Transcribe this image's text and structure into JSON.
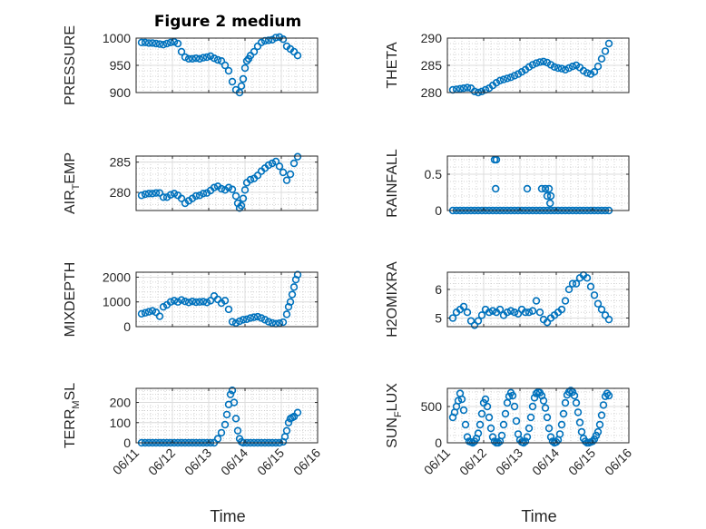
{
  "figure_title": "Figure 2 medium",
  "colors": {
    "marker": "#0072bd",
    "axis": "#262626",
    "grid": "#dcdcdc"
  },
  "chart_data": [
    {
      "type": "scatter",
      "ylabel": "PRESSURE",
      "xlim": [
        0,
        5
      ],
      "ylim": [
        900,
        1000
      ],
      "yticks": [
        900,
        950,
        1000
      ],
      "xticks": [
        0,
        1,
        2,
        3,
        4,
        5
      ],
      "xticklabels": [
        "06/11",
        "06/12",
        "06/13",
        "06/14",
        "06/15",
        "06/16"
      ],
      "show_xticklabels": false,
      "grid": true,
      "minor_grid": true,
      "marker": "o",
      "x": [
        0.15,
        0.25,
        0.35,
        0.45,
        0.55,
        0.65,
        0.75,
        0.85,
        0.95,
        1.05,
        1.15,
        1.25,
        1.35,
        1.45,
        1.55,
        1.65,
        1.75,
        1.85,
        1.95,
        2.05,
        2.15,
        2.25,
        2.35,
        2.45,
        2.55,
        2.65,
        2.75,
        2.85,
        2.9,
        2.95,
        3.0,
        3.05,
        3.1,
        3.15,
        3.25,
        3.35,
        3.45,
        3.55,
        3.65,
        3.75,
        3.85,
        3.95,
        4.05,
        4.15,
        4.25,
        4.35,
        4.45
      ],
      "y": [
        992,
        992,
        991,
        991,
        990,
        989,
        988,
        990,
        992,
        993,
        990,
        975,
        965,
        962,
        962,
        963,
        962,
        964,
        965,
        967,
        963,
        960,
        958,
        950,
        940,
        920,
        905,
        900,
        912,
        925,
        945,
        958,
        962,
        968,
        975,
        985,
        992,
        995,
        996,
        997,
        1001,
        1002,
        998,
        985,
        980,
        975,
        968
      ]
    },
    {
      "type": "scatter",
      "ylabel": "THETA",
      "xlim": [
        0,
        5
      ],
      "ylim": [
        280,
        290
      ],
      "yticks": [
        280,
        285,
        290
      ],
      "xticks": [
        0,
        1,
        2,
        3,
        4,
        5
      ],
      "xticklabels": [
        "06/11",
        "06/12",
        "06/13",
        "06/14",
        "06/15",
        "06/16"
      ],
      "show_xticklabels": false,
      "grid": true,
      "minor_grid": true,
      "marker": "o",
      "x": [
        0.15,
        0.25,
        0.35,
        0.45,
        0.55,
        0.65,
        0.75,
        0.85,
        0.95,
        1.05,
        1.15,
        1.25,
        1.35,
        1.45,
        1.55,
        1.65,
        1.75,
        1.85,
        1.95,
        2.05,
        2.15,
        2.25,
        2.35,
        2.45,
        2.55,
        2.65,
        2.75,
        2.85,
        2.95,
        3.05,
        3.15,
        3.25,
        3.35,
        3.45,
        3.55,
        3.65,
        3.75,
        3.85,
        3.95,
        4.05,
        4.15,
        4.25,
        4.35,
        4.45
      ],
      "y": [
        280.5,
        280.6,
        280.7,
        280.8,
        280.9,
        280.8,
        280.2,
        280.0,
        280.2,
        280.5,
        280.8,
        281.3,
        281.8,
        282.2,
        282.4,
        282.6,
        282.8,
        283.1,
        283.4,
        283.8,
        284.2,
        284.7,
        285.1,
        285.4,
        285.6,
        285.7,
        285.5,
        285.1,
        284.7,
        284.5,
        284.4,
        284.2,
        284.5,
        284.8,
        285.0,
        284.6,
        284.0,
        283.6,
        283.4,
        283.8,
        284.8,
        286.2,
        287.6,
        289.0
      ]
    },
    {
      "type": "scatter",
      "ylabel": "AIR_TEMP",
      "xlim": [
        0,
        5
      ],
      "ylim": [
        277,
        286
      ],
      "yticks": [
        280,
        285
      ],
      "xticks": [
        0,
        1,
        2,
        3,
        4,
        5
      ],
      "xticklabels": [
        "06/11",
        "06/12",
        "06/13",
        "06/14",
        "06/15",
        "06/16"
      ],
      "show_xticklabels": false,
      "grid": true,
      "minor_grid": true,
      "marker": "o",
      "x": [
        0.15,
        0.25,
        0.35,
        0.45,
        0.55,
        0.65,
        0.75,
        0.85,
        0.95,
        1.05,
        1.15,
        1.25,
        1.35,
        1.45,
        1.55,
        1.65,
        1.75,
        1.85,
        1.95,
        2.05,
        2.15,
        2.25,
        2.35,
        2.45,
        2.55,
        2.65,
        2.75,
        2.8,
        2.85,
        2.9,
        2.95,
        3.0,
        3.05,
        3.15,
        3.25,
        3.35,
        3.45,
        3.55,
        3.65,
        3.75,
        3.85,
        3.95,
        4.05,
        4.15,
        4.25,
        4.35,
        4.45
      ],
      "y": [
        279.5,
        279.7,
        279.8,
        279.8,
        279.9,
        279.9,
        279.2,
        279.2,
        279.6,
        279.8,
        279.5,
        279.0,
        278.2,
        278.6,
        279.0,
        279.4,
        279.5,
        279.8,
        279.9,
        280.3,
        280.8,
        281.0,
        280.6,
        280.4,
        280.8,
        280.5,
        279.4,
        278.2,
        277.4,
        277.8,
        279.0,
        280.4,
        281.6,
        282.1,
        282.3,
        282.8,
        283.5,
        284.0,
        284.5,
        284.8,
        285.1,
        284.3,
        283.3,
        282.0,
        283.0,
        284.8,
        285.9
      ]
    },
    {
      "type": "scatter",
      "ylabel": "RAINFALL",
      "xlim": [
        0,
        5
      ],
      "ylim": [
        0,
        0.75
      ],
      "yticks": [
        0,
        0.5
      ],
      "xticks": [
        0,
        1,
        2,
        3,
        4,
        5
      ],
      "xticklabels": [
        "06/11",
        "06/12",
        "06/13",
        "06/14",
        "06/15",
        "06/16"
      ],
      "show_xticklabels": false,
      "grid": true,
      "minor_grid": true,
      "marker": "o",
      "x": [
        0.15,
        0.25,
        0.35,
        0.45,
        0.55,
        0.65,
        0.75,
        0.85,
        0.95,
        1.05,
        1.15,
        1.25,
        1.35,
        1.45,
        1.55,
        1.65,
        1.75,
        1.85,
        1.95,
        2.05,
        2.15,
        2.25,
        2.35,
        2.45,
        2.55,
        2.65,
        2.75,
        2.85,
        2.95,
        3.05,
        3.15,
        3.25,
        3.35,
        3.45,
        3.55,
        3.65,
        3.75,
        3.85,
        3.95,
        4.05,
        4.15,
        4.25,
        4.35,
        4.45,
        1.3,
        1.35,
        1.33,
        2.2,
        2.6,
        2.7,
        2.75,
        2.8,
        2.85,
        2.83
      ],
      "y": [
        0,
        0,
        0,
        0,
        0,
        0,
        0,
        0,
        0,
        0,
        0,
        0,
        0,
        0,
        0,
        0,
        0,
        0,
        0,
        0,
        0,
        0,
        0,
        0,
        0,
        0,
        0,
        0,
        0,
        0,
        0,
        0,
        0,
        0,
        0,
        0,
        0,
        0,
        0,
        0,
        0,
        0,
        0,
        0,
        0.7,
        0.7,
        0.3,
        0.3,
        0.3,
        0.3,
        0.2,
        0.3,
        0.2,
        0.1
      ]
    },
    {
      "type": "scatter",
      "ylabel": "MIXDEPTH",
      "xlim": [
        0,
        5
      ],
      "ylim": [
        0,
        2200
      ],
      "yticks": [
        0,
        1000,
        2000
      ],
      "xticks": [
        0,
        1,
        2,
        3,
        4,
        5
      ],
      "xticklabels": [
        "06/11",
        "06/12",
        "06/13",
        "06/14",
        "06/15",
        "06/16"
      ],
      "show_xticklabels": false,
      "grid": true,
      "minor_grid": true,
      "marker": "o",
      "x": [
        0.15,
        0.25,
        0.35,
        0.45,
        0.55,
        0.65,
        0.75,
        0.85,
        0.95,
        1.05,
        1.15,
        1.25,
        1.35,
        1.45,
        1.55,
        1.65,
        1.75,
        1.85,
        1.95,
        2.05,
        2.15,
        2.25,
        2.35,
        2.45,
        2.55,
        2.65,
        2.75,
        2.85,
        2.95,
        3.05,
        3.15,
        3.25,
        3.35,
        3.45,
        3.55,
        3.65,
        3.75,
        3.85,
        3.95,
        4.05,
        4.15,
        4.2,
        4.25,
        4.3,
        4.35,
        4.4,
        4.45
      ],
      "y": [
        520,
        560,
        600,
        640,
        580,
        420,
        800,
        880,
        1000,
        1050,
        1000,
        1080,
        1020,
        980,
        1020,
        990,
        1000,
        1010,
        980,
        1050,
        1240,
        1100,
        950,
        1050,
        700,
        200,
        150,
        220,
        280,
        300,
        350,
        380,
        400,
        350,
        280,
        200,
        150,
        120,
        140,
        180,
        500,
        800,
        1000,
        1300,
        1600,
        1900,
        2100
      ]
    },
    {
      "type": "scatter",
      "ylabel": "H2OMIXRA",
      "xlim": [
        0,
        5
      ],
      "ylim": [
        4.7,
        6.6
      ],
      "yticks": [
        5,
        6
      ],
      "xticks": [
        0,
        1,
        2,
        3,
        4,
        5
      ],
      "xticklabels": [
        "06/11",
        "06/12",
        "06/13",
        "06/14",
        "06/15",
        "06/16"
      ],
      "show_xticklabels": false,
      "grid": true,
      "minor_grid": true,
      "marker": "o",
      "x": [
        0.15,
        0.25,
        0.35,
        0.45,
        0.55,
        0.65,
        0.75,
        0.85,
        0.95,
        1.05,
        1.15,
        1.25,
        1.35,
        1.45,
        1.55,
        1.65,
        1.75,
        1.85,
        1.95,
        2.05,
        2.15,
        2.25,
        2.35,
        2.45,
        2.55,
        2.65,
        2.75,
        2.85,
        2.95,
        3.05,
        3.15,
        3.25,
        3.35,
        3.45,
        3.55,
        3.65,
        3.75,
        3.85,
        3.95,
        4.05,
        4.15,
        4.25,
        4.35,
        4.45
      ],
      "y": [
        5.0,
        5.2,
        5.3,
        5.4,
        5.2,
        4.9,
        4.75,
        4.9,
        5.1,
        5.3,
        5.2,
        5.25,
        5.2,
        5.3,
        5.1,
        5.2,
        5.25,
        5.2,
        5.15,
        5.3,
        5.2,
        5.2,
        5.25,
        5.6,
        5.2,
        4.95,
        4.85,
        5.0,
        5.1,
        5.2,
        5.3,
        5.6,
        6.0,
        6.2,
        6.2,
        6.4,
        6.5,
        6.4,
        6.1,
        5.8,
        5.5,
        5.3,
        5.1,
        4.95
      ]
    },
    {
      "type": "scatter",
      "ylabel": "TERR_MSL",
      "xlim": [
        0,
        5
      ],
      "ylim": [
        0,
        270
      ],
      "yticks": [
        0,
        100,
        200
      ],
      "xticks": [
        0,
        1,
        2,
        3,
        4,
        5
      ],
      "xticklabels": [
        "06/11",
        "06/12",
        "06/13",
        "06/14",
        "06/15",
        "06/16"
      ],
      "show_xticklabels": true,
      "grid": true,
      "minor_grid": true,
      "marker": "o",
      "x": [
        0.15,
        0.25,
        0.35,
        0.45,
        0.55,
        0.65,
        0.75,
        0.85,
        0.95,
        1.05,
        1.15,
        1.25,
        1.35,
        1.45,
        1.55,
        1.65,
        1.75,
        1.85,
        1.95,
        2.05,
        2.15,
        2.25,
        2.35,
        2.45,
        2.5,
        2.55,
        2.6,
        2.65,
        2.7,
        2.75,
        2.8,
        2.85,
        2.9,
        2.95,
        3.05,
        3.15,
        3.25,
        3.35,
        3.45,
        3.55,
        3.65,
        3.75,
        3.85,
        3.95,
        4.05,
        4.1,
        4.15,
        4.2,
        4.25,
        4.3,
        4.35,
        4.45
      ],
      "y": [
        0,
        0,
        0,
        0,
        0,
        0,
        0,
        0,
        0,
        0,
        0,
        0,
        0,
        0,
        0,
        0,
        0,
        0,
        0,
        0,
        0,
        20,
        50,
        90,
        140,
        190,
        240,
        260,
        200,
        120,
        60,
        20,
        5,
        0,
        0,
        0,
        0,
        0,
        0,
        0,
        0,
        0,
        0,
        0,
        5,
        30,
        60,
        100,
        120,
        125,
        130,
        150
      ]
    },
    {
      "type": "scatter",
      "ylabel": "SUN_FLUX",
      "xlim": [
        0,
        5
      ],
      "ylim": [
        0,
        750
      ],
      "yticks": [
        0,
        500
      ],
      "xticks": [
        0,
        1,
        2,
        3,
        4,
        5
      ],
      "xticklabels": [
        "06/11",
        "06/12",
        "06/13",
        "06/14",
        "06/15",
        "06/16"
      ],
      "show_xticklabels": true,
      "grid": true,
      "minor_grid": true,
      "marker": "o",
      "x": [
        0.15,
        0.2,
        0.25,
        0.3,
        0.35,
        0.4,
        0.45,
        0.5,
        0.55,
        0.6,
        0.65,
        0.7,
        0.75,
        0.8,
        0.85,
        0.9,
        0.95,
        1.0,
        1.05,
        1.1,
        1.15,
        1.2,
        1.25,
        1.3,
        1.35,
        1.4,
        1.45,
        1.5,
        1.55,
        1.6,
        1.65,
        1.7,
        1.75,
        1.8,
        1.85,
        1.9,
        1.95,
        2.0,
        2.05,
        2.1,
        2.15,
        2.2,
        2.25,
        2.3,
        2.35,
        2.4,
        2.45,
        2.5,
        2.55,
        2.6,
        2.65,
        2.7,
        2.75,
        2.8,
        2.85,
        2.9,
        2.95,
        3.0,
        3.05,
        3.1,
        3.15,
        3.2,
        3.25,
        3.3,
        3.35,
        3.4,
        3.45,
        3.5,
        3.55,
        3.6,
        3.65,
        3.7,
        3.75,
        3.8,
        3.85,
        3.9,
        3.95,
        4.0,
        4.05,
        4.1,
        4.15,
        4.2,
        4.25,
        4.3,
        4.35,
        4.4,
        4.45
      ],
      "y": [
        350,
        420,
        500,
        580,
        680,
        600,
        450,
        250,
        80,
        20,
        10,
        0,
        20,
        60,
        130,
        250,
        400,
        550,
        600,
        500,
        350,
        200,
        80,
        20,
        0,
        0,
        20,
        100,
        250,
        400,
        550,
        640,
        690,
        650,
        500,
        300,
        120,
        40,
        10,
        0,
        20,
        80,
        200,
        350,
        500,
        620,
        680,
        700,
        690,
        650,
        580,
        480,
        350,
        200,
        80,
        20,
        0,
        10,
        40,
        120,
        250,
        400,
        550,
        660,
        700,
        720,
        700,
        650,
        550,
        420,
        280,
        150,
        60,
        20,
        0,
        0,
        10,
        20,
        50,
        100,
        150,
        250,
        380,
        520,
        640,
        680,
        650
      ]
    }
  ],
  "xlabel_left": "Time",
  "xlabel_right": "Time"
}
